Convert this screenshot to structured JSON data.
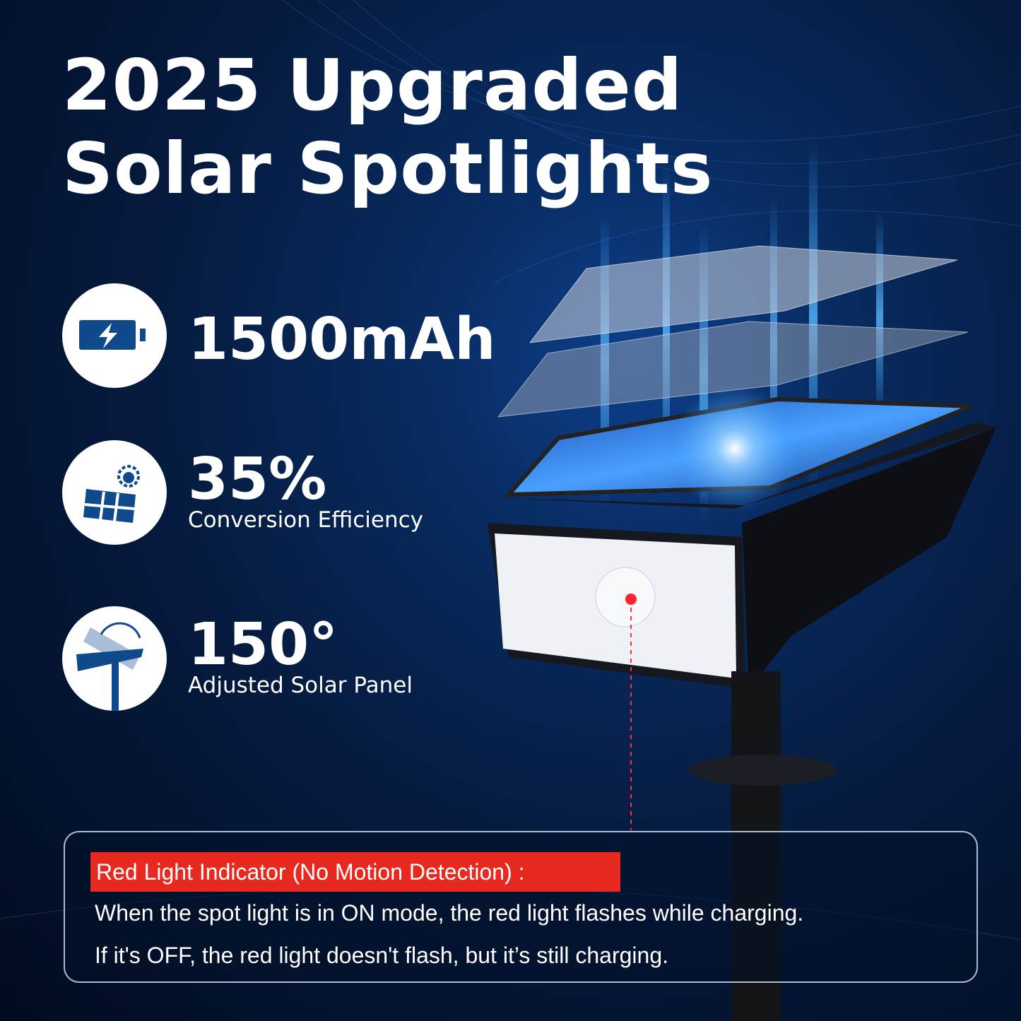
{
  "title": {
    "line1": "2025  Upgraded",
    "line2": "Solar Spotlights"
  },
  "features": [
    {
      "icon": "battery-charging-icon",
      "main": "1500mAh",
      "sub": ""
    },
    {
      "icon": "solar-panel-sun-icon",
      "main": "35%",
      "sub": "Conversion Efficiency"
    },
    {
      "icon": "adjustable-panel-icon",
      "main": "150°",
      "sub": "Adjusted Solar Panel"
    }
  ],
  "info": {
    "heading": "Red Light Indicator (No Motion Detection) :",
    "line1": "When the spot light is in ON mode, the red light flashes while charging.",
    "line2": "If it's OFF, the red light doesn't flash, but it’s still charging."
  },
  "colors": {
    "background": "#051a3d",
    "icon_blue": "#0f4a8c",
    "heading_red": "#e8291f",
    "indicator_red": "#ff2030"
  }
}
